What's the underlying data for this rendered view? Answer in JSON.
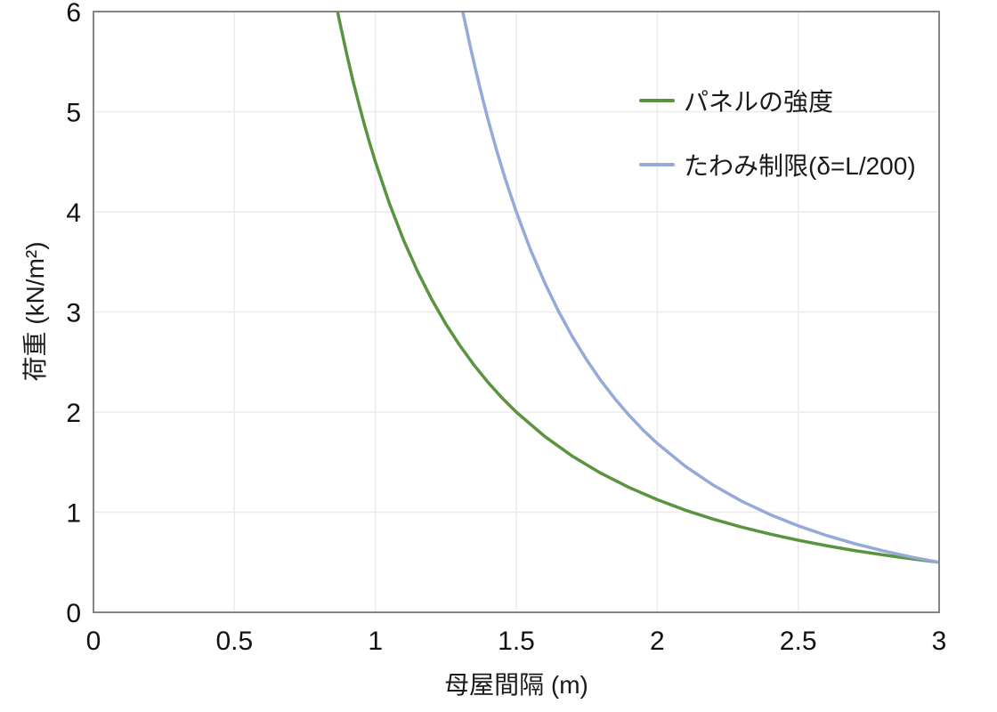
{
  "chart_data": {
    "type": "line",
    "title": "",
    "xlabel": "母屋間隔 (m)",
    "ylabel": "荷重 (kN/m²)",
    "xlim": [
      0,
      3
    ],
    "ylim": [
      0,
      6
    ],
    "grid": true,
    "legend_position": "top-right-inside",
    "x_ticks": [
      {
        "v": 0,
        "label": "0"
      },
      {
        "v": 0.5,
        "label": "0.5"
      },
      {
        "v": 1,
        "label": "1"
      },
      {
        "v": 1.5,
        "label": "1.5"
      },
      {
        "v": 2,
        "label": "2"
      },
      {
        "v": 2.5,
        "label": "2.5"
      },
      {
        "v": 3,
        "label": "3"
      }
    ],
    "y_ticks": [
      {
        "v": 0,
        "label": "0"
      },
      {
        "v": 1,
        "label": "1"
      },
      {
        "v": 2,
        "label": "2"
      },
      {
        "v": 3,
        "label": "3"
      },
      {
        "v": 4,
        "label": "4"
      },
      {
        "v": 5,
        "label": "5"
      },
      {
        "v": 6,
        "label": "6"
      }
    ],
    "series": [
      {
        "name": "パネルの強度",
        "color": "#5a9441",
        "formula": "y = 4.5 / x^2",
        "points": [
          [
            0.866,
            6.0
          ],
          [
            0.88,
            5.811
          ],
          [
            0.9,
            5.556
          ],
          [
            0.92,
            5.316
          ],
          [
            0.94,
            5.093
          ],
          [
            0.96,
            4.883
          ],
          [
            0.98,
            4.686
          ],
          [
            1.0,
            4.5
          ],
          [
            1.05,
            4.082
          ],
          [
            1.1,
            3.719
          ],
          [
            1.15,
            3.403
          ],
          [
            1.2,
            3.125
          ],
          [
            1.25,
            2.88
          ],
          [
            1.3,
            2.663
          ],
          [
            1.35,
            2.469
          ],
          [
            1.4,
            2.296
          ],
          [
            1.45,
            2.14
          ],
          [
            1.5,
            2.0
          ],
          [
            1.6,
            1.758
          ],
          [
            1.7,
            1.557
          ],
          [
            1.8,
            1.389
          ],
          [
            1.9,
            1.247
          ],
          [
            2.0,
            1.125
          ],
          [
            2.1,
            1.02
          ],
          [
            2.2,
            0.93
          ],
          [
            2.3,
            0.851
          ],
          [
            2.4,
            0.781
          ],
          [
            2.5,
            0.72
          ],
          [
            2.6,
            0.666
          ],
          [
            2.7,
            0.617
          ],
          [
            2.8,
            0.574
          ],
          [
            2.9,
            0.535
          ],
          [
            3.0,
            0.5
          ]
        ]
      },
      {
        "name": "たわみ制限(δ=L/200)",
        "color": "#95aad9",
        "formula": "y = 13.5 / x^3",
        "points": [
          [
            1.31,
            6.0
          ],
          [
            1.32,
            5.87
          ],
          [
            1.34,
            5.611
          ],
          [
            1.36,
            5.367
          ],
          [
            1.38,
            5.137
          ],
          [
            1.4,
            4.92
          ],
          [
            1.43,
            4.617
          ],
          [
            1.46,
            4.338
          ],
          [
            1.5,
            4.0
          ],
          [
            1.55,
            3.625
          ],
          [
            1.6,
            3.296
          ],
          [
            1.65,
            3.005
          ],
          [
            1.7,
            2.748
          ],
          [
            1.75,
            2.519
          ],
          [
            1.8,
            2.315
          ],
          [
            1.85,
            2.132
          ],
          [
            1.9,
            1.968
          ],
          [
            1.95,
            1.82
          ],
          [
            2.0,
            1.688
          ],
          [
            2.1,
            1.458
          ],
          [
            2.2,
            1.268
          ],
          [
            2.3,
            1.109
          ],
          [
            2.4,
            0.977
          ],
          [
            2.5,
            0.864
          ],
          [
            2.6,
            0.768
          ],
          [
            2.7,
            0.686
          ],
          [
            2.8,
            0.615
          ],
          [
            2.9,
            0.553
          ],
          [
            3.0,
            0.5
          ]
        ]
      }
    ],
    "colors": {
      "frame": "#858585",
      "gridline": "#ebebeb",
      "tick_text": "#111111",
      "label_text": "#1a1a1a",
      "background": "#ffffff"
    }
  }
}
